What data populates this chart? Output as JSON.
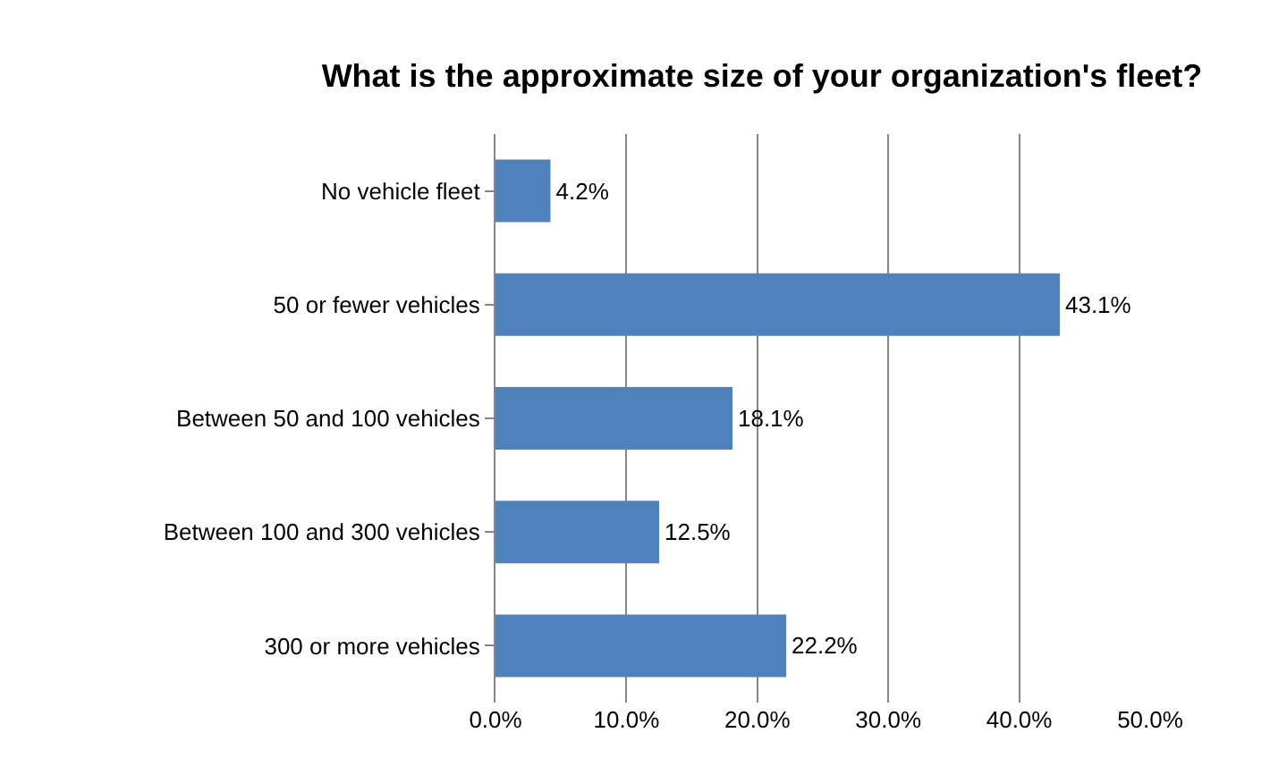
{
  "chart_data": {
    "type": "bar",
    "orientation": "horizontal",
    "title": "What is the approximate size of your organization's fleet?",
    "categories": [
      "No vehicle fleet",
      "50 or fewer vehicles",
      "Between 50 and 100 vehicles",
      "Between 100 and 300 vehicles",
      "300 or more vehicles"
    ],
    "values": [
      4.2,
      43.1,
      18.1,
      12.5,
      22.2
    ],
    "value_labels": [
      "4.2%",
      "43.1%",
      "18.1%",
      "12.5%",
      "22.2%"
    ],
    "color": "#4f81bd",
    "xlim": [
      0,
      50
    ],
    "xticks": [
      {
        "value": 0,
        "label": "0.0%"
      },
      {
        "value": 10,
        "label": "10.0%"
      },
      {
        "value": 20,
        "label": "20.0%"
      },
      {
        "value": 30,
        "label": "30.0%"
      },
      {
        "value": 40,
        "label": "40.0%"
      },
      {
        "value": 50,
        "label": "50.0%"
      }
    ],
    "grid": "x",
    "legend": false
  }
}
